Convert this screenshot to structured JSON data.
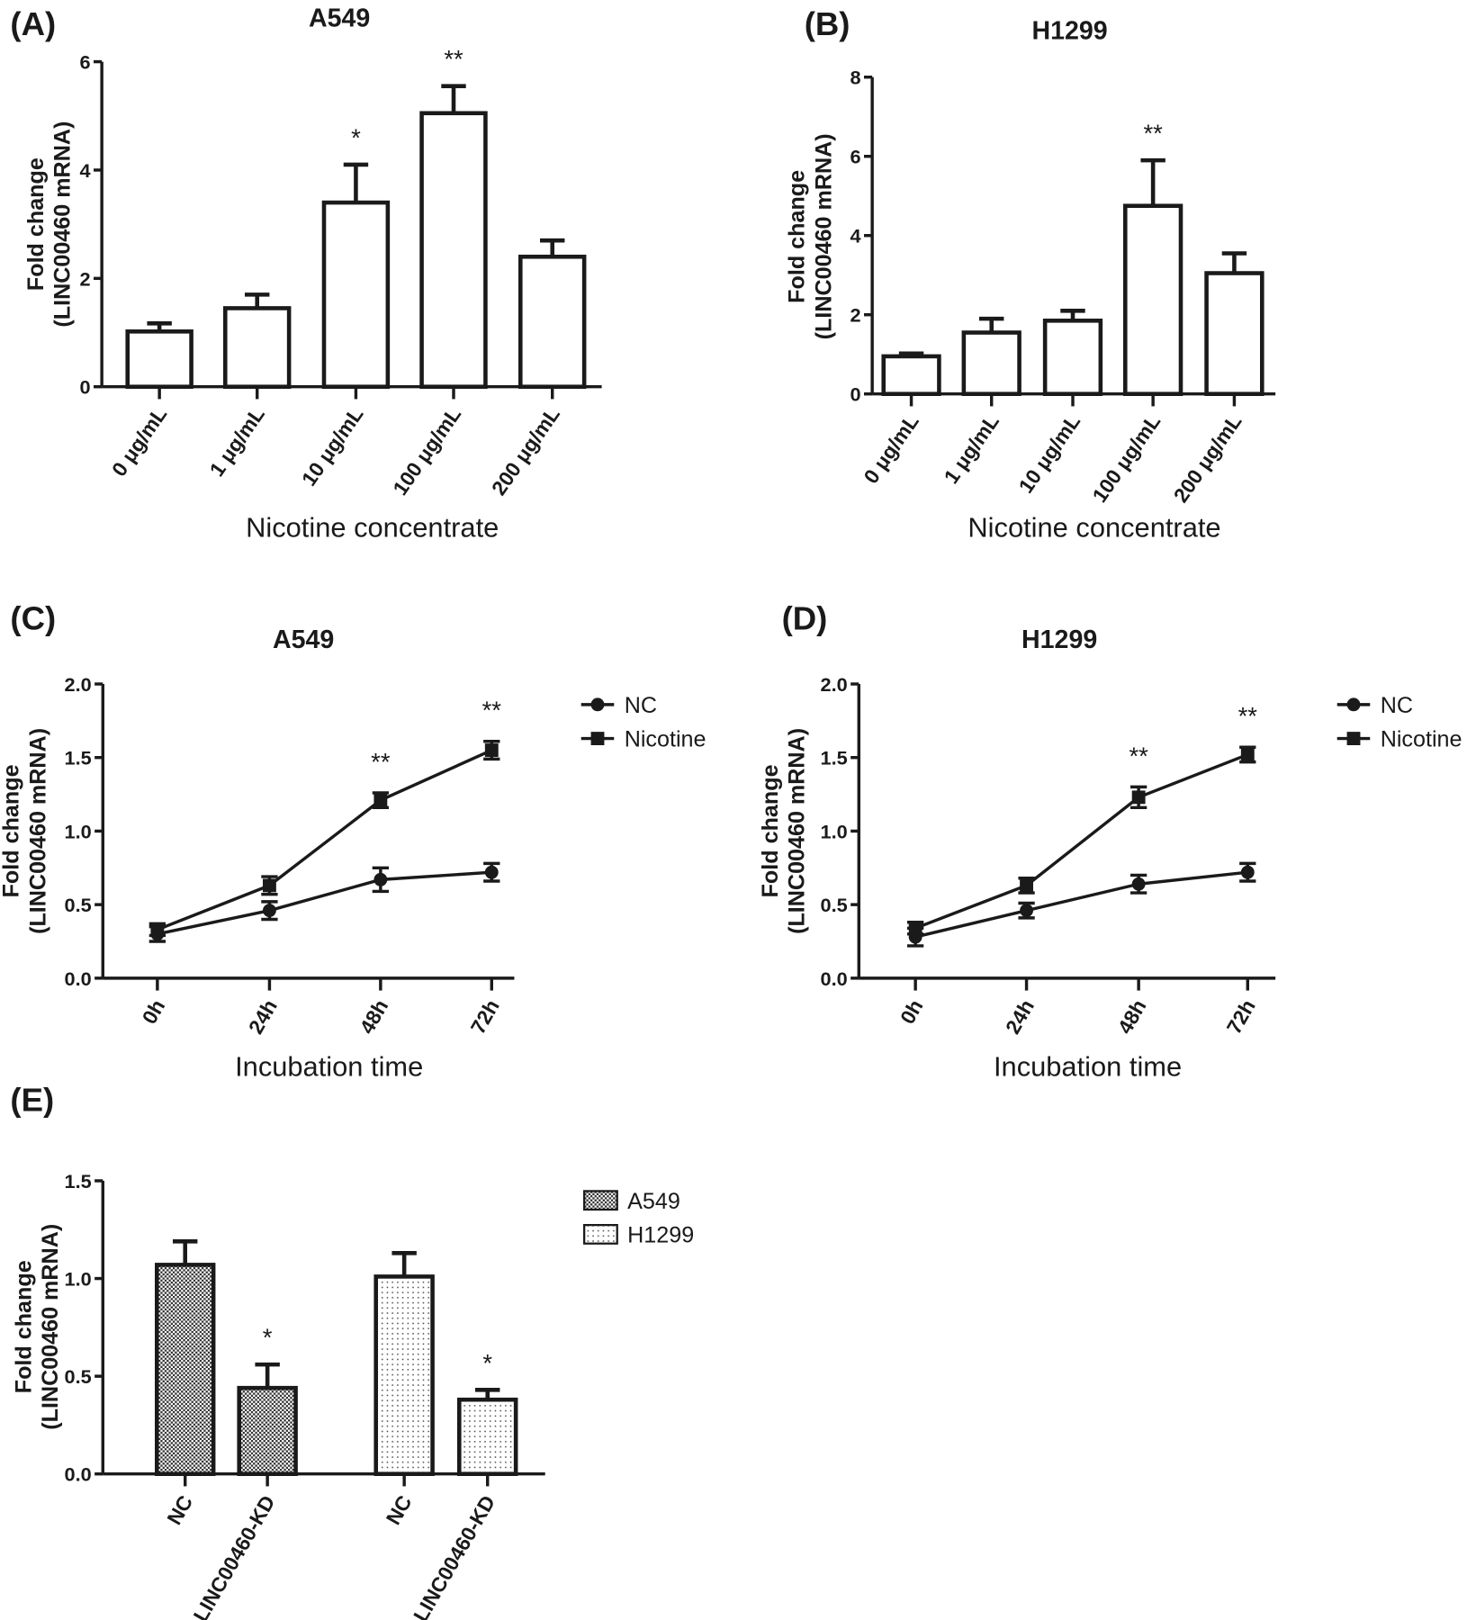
{
  "chart_data": [
    {
      "panel": "(A)",
      "type": "bar",
      "title": "A549",
      "xlabel": "Nicotine concentrate",
      "ylabel": [
        "Fold change",
        "(LINC00460 mRNA)"
      ],
      "ylim": [
        0,
        6
      ],
      "yticks": [
        "0",
        "2",
        "4",
        "6"
      ],
      "ytick_values": [
        0,
        2,
        4,
        6
      ],
      "categories": [
        "0 μg/mL",
        "1 μg/mL",
        "10 μg/mL",
        "100 μg/mL",
        "200 μg/mL"
      ],
      "values": [
        1.02,
        1.45,
        3.4,
        5.05,
        2.4
      ],
      "errors": [
        0.15,
        0.25,
        0.7,
        0.5,
        0.3
      ],
      "significance": [
        "",
        "",
        "*",
        "**",
        ""
      ]
    },
    {
      "panel": "(B)",
      "type": "bar",
      "title": "H1299",
      "xlabel": "Nicotine concentrate",
      "ylabel": [
        "Fold change",
        "(LINC00460 mRNA)"
      ],
      "ylim": [
        0,
        8
      ],
      "yticks": [
        "0",
        "2",
        "4",
        "6",
        "8"
      ],
      "ytick_values": [
        0,
        2,
        4,
        6,
        8
      ],
      "categories": [
        "0 μg/mL",
        "1 μg/mL",
        "10 μg/mL",
        "100 μg/mL",
        "200 μg/mL"
      ],
      "values": [
        0.95,
        1.55,
        1.85,
        4.75,
        3.05
      ],
      "errors": [
        0.07,
        0.35,
        0.25,
        1.15,
        0.5
      ],
      "significance": [
        "",
        "",
        "",
        "**",
        ""
      ]
    },
    {
      "panel": "(C)",
      "type": "line",
      "title": "A549",
      "xlabel": "Incubation time",
      "ylabel": [
        "Fold change",
        "(LINC00460 mRNA)"
      ],
      "ylim": [
        0,
        2
      ],
      "yticks": [
        "0.0",
        "0.5",
        "1.0",
        "1.5",
        "2.0"
      ],
      "ytick_values": [
        0,
        0.5,
        1,
        1.5,
        2
      ],
      "categories": [
        "0h",
        "24h",
        "48h",
        "72h"
      ],
      "series": [
        {
          "name": "NC",
          "marker": "circle",
          "values": [
            0.3,
            0.46,
            0.67,
            0.72
          ],
          "errors": [
            0.05,
            0.06,
            0.08,
            0.06
          ]
        },
        {
          "name": "Nicotine",
          "marker": "square",
          "values": [
            0.33,
            0.63,
            1.21,
            1.55
          ],
          "errors": [
            0.04,
            0.06,
            0.05,
            0.06
          ]
        }
      ],
      "significance": [
        "",
        "",
        "**",
        "**"
      ],
      "legend": "right"
    },
    {
      "panel": "(D)",
      "type": "line",
      "title": "H1299",
      "xlabel": "Incubation time",
      "ylabel": [
        "Fold change",
        "(LINC00460 mRNA)"
      ],
      "ylim": [
        0,
        2
      ],
      "yticks": [
        "0.0",
        "0.5",
        "1.0",
        "1.5",
        "2.0"
      ],
      "ytick_values": [
        0,
        0.5,
        1,
        1.5,
        2
      ],
      "categories": [
        "0h",
        "24h",
        "48h",
        "72h"
      ],
      "series": [
        {
          "name": "NC",
          "marker": "circle",
          "values": [
            0.28,
            0.46,
            0.64,
            0.72
          ],
          "errors": [
            0.06,
            0.05,
            0.06,
            0.06
          ]
        },
        {
          "name": "Nicotine",
          "marker": "square",
          "values": [
            0.34,
            0.63,
            1.23,
            1.52
          ],
          "errors": [
            0.04,
            0.05,
            0.07,
            0.05
          ]
        }
      ],
      "significance": [
        "",
        "",
        "**",
        "**"
      ],
      "legend": "right"
    },
    {
      "panel": "(E)",
      "type": "bar",
      "title": "",
      "xlabel": "",
      "ylabel": [
        "Fold change",
        "(LINC00460 mRNA)"
      ],
      "ylim": [
        0,
        1.5
      ],
      "yticks": [
        "0.0",
        "0.5",
        "1.0",
        "1.5"
      ],
      "ytick_values": [
        0,
        0.5,
        1,
        1.5
      ],
      "categories": [
        "NC",
        "LINC00460-KD",
        "NC",
        "LINC00460-KD"
      ],
      "values": [
        1.07,
        0.44,
        1.01,
        0.38
      ],
      "errors": [
        0.12,
        0.12,
        0.12,
        0.05
      ],
      "groups": [
        "A549",
        "A549",
        "H1299",
        "H1299"
      ],
      "significance": [
        "",
        "*",
        "",
        "*"
      ],
      "legend_entries": [
        "A549",
        "H1299"
      ],
      "legend": "right"
    }
  ]
}
